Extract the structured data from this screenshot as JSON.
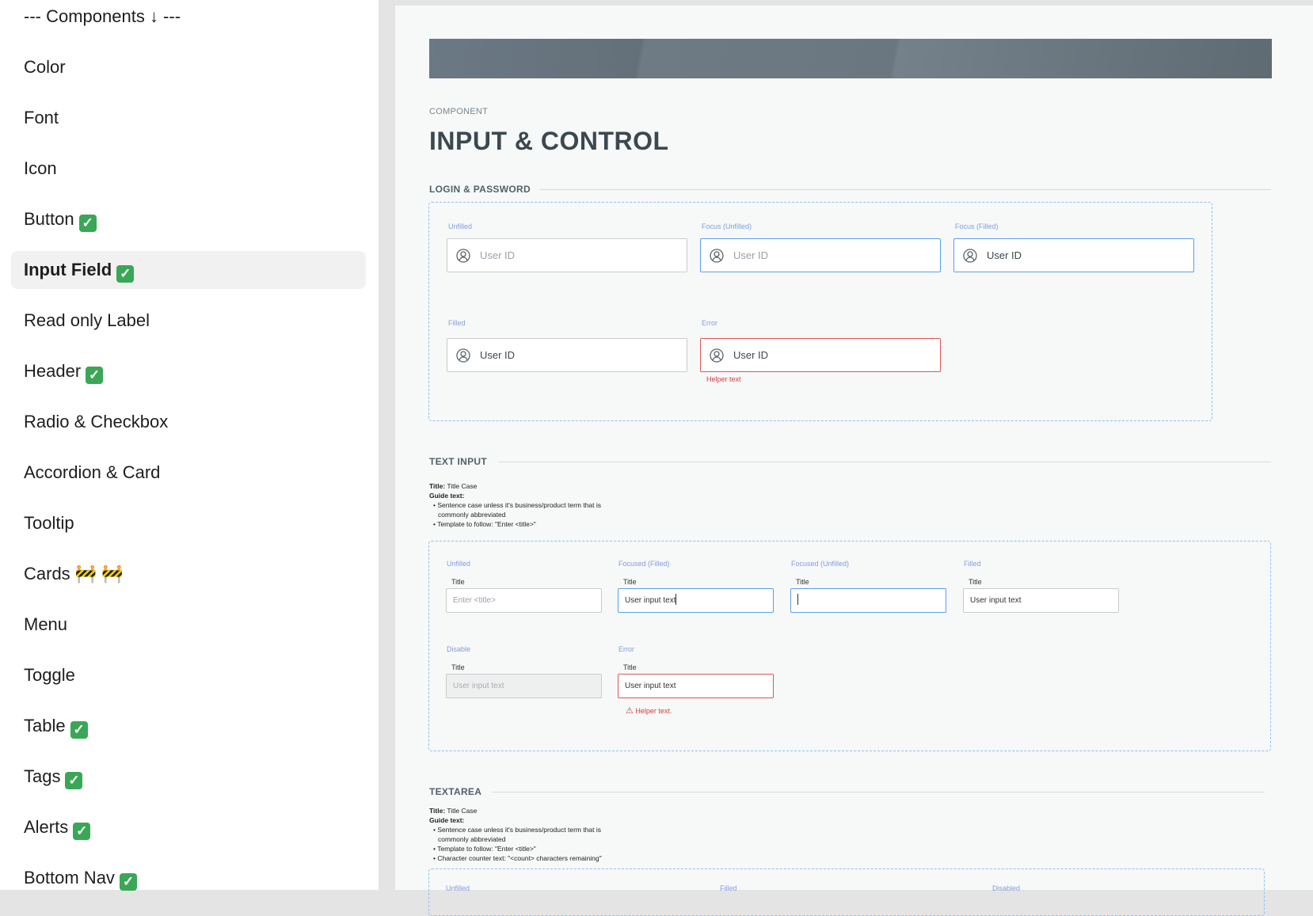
{
  "sidebar": {
    "items": [
      {
        "label": "--- Components ↓ ---"
      },
      {
        "label": "Color"
      },
      {
        "label": "Font"
      },
      {
        "label": "Icon"
      },
      {
        "label": "Button",
        "badge": "✓"
      },
      {
        "label": "Input Field",
        "badge": "✓",
        "active": true
      },
      {
        "label": "Read only Label"
      },
      {
        "label": "Header",
        "badge": "✓"
      },
      {
        "label": "Radio & Checkbox"
      },
      {
        "label": "Accordion & Card"
      },
      {
        "label": "Tooltip"
      },
      {
        "label": "Cards",
        "badge": "🚧 🚧"
      },
      {
        "label": "Menu"
      },
      {
        "label": "Toggle"
      },
      {
        "label": "Table",
        "badge": "✓"
      },
      {
        "label": "Tags",
        "badge": "✓"
      },
      {
        "label": "Alerts",
        "badge": "✓"
      },
      {
        "label": "Bottom Nav",
        "badge": "✓"
      }
    ]
  },
  "page": {
    "eyebrow": "COMPONENT",
    "title": "INPUT & CONTROL"
  },
  "login": {
    "heading": "LOGIN & PASSWORD",
    "fields": [
      {
        "state": "Unfilled",
        "value": "User ID"
      },
      {
        "state": "Focus (Unfilled)",
        "value": "User ID"
      },
      {
        "state": "Focus (Filled)",
        "value": "User ID"
      },
      {
        "state": "Filled",
        "value": "User ID"
      },
      {
        "state": "Error",
        "value": "User ID",
        "helper": "Helper text"
      }
    ]
  },
  "text_input": {
    "heading": "TEXT INPUT",
    "guide": {
      "title_label": "Title:",
      "title_value": "Title Case",
      "guide_label": "Guide text:",
      "bullets": [
        "Sentence case unless it's business/product term that is",
        "commonly abbreviated",
        "Template to follow: \"Enter <title>\""
      ]
    },
    "fields": [
      {
        "state": "Unfilled",
        "title": "Title",
        "value": "Enter <title>"
      },
      {
        "state": "Focused (Filled)",
        "title": "Title",
        "value": "User input text"
      },
      {
        "state": "Focused (Unfilled)",
        "title": "Title",
        "value": ""
      },
      {
        "state": "Filled",
        "title": "Title",
        "value": "User input text"
      },
      {
        "state": "Disable",
        "title": "Title",
        "value": "User input text"
      },
      {
        "state": "Error",
        "title": "Title",
        "value": "User input text",
        "helper": "Helper text."
      }
    ]
  },
  "textarea": {
    "heading": "TEXTAREA",
    "guide": {
      "title_label": "Title:",
      "title_value": "Title Case",
      "guide_label": "Guide text:",
      "bullets": [
        "Sentence case unless it's business/product term that is",
        "commonly abbreviated",
        "Template to follow: \"Enter <title>\"",
        "Character counter text: \"<count> characters remaining\""
      ]
    },
    "states": [
      "Unfilled",
      "Filled",
      "Disabled"
    ]
  },
  "colors": {
    "focus": "#5b9ef0",
    "error": "#e05555",
    "state_label": "#7f9ee0",
    "check": "#3aa757"
  }
}
